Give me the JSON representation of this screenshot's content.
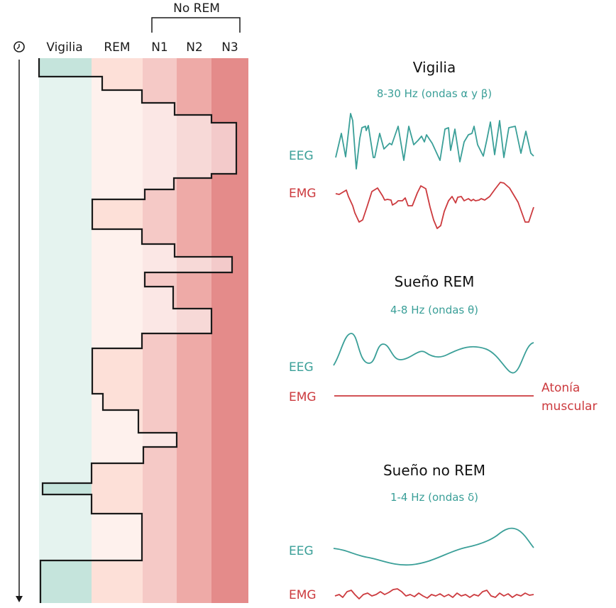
{
  "hypnogram": {
    "group_label": "No REM",
    "columns": [
      "Vigilia",
      "REM",
      "N1",
      "N2",
      "N3"
    ],
    "time_icon": "clock-icon",
    "stage_sequence": [
      "Vigilia",
      "REM",
      "N1",
      "N2",
      "N3",
      "N2",
      "N1",
      "REM",
      "N1",
      "N2",
      "N3",
      "N1",
      "N2",
      "N3",
      "N1",
      "REM",
      "REM",
      "N1",
      "N2",
      "N1",
      "REM",
      "Vigilia",
      "REM",
      "N1",
      "Vigilia"
    ],
    "colors": {
      "Vigilia": "#c5e4dc",
      "REM": "#fde0d8",
      "N1": "#f5c9c6",
      "N2": "#eeaaa7",
      "N3": "#e48b8a"
    }
  },
  "panels": [
    {
      "title": "Vigilia",
      "subtitle": "8-30 Hz (ondas α y β)",
      "eeg_label": "EEG",
      "emg_label": "EMG"
    },
    {
      "title": "Sueño REM",
      "subtitle": "4-8 Hz (ondas θ)",
      "eeg_label": "EEG",
      "emg_label": "EMG",
      "emg_note_line1": "Atonía",
      "emg_note_line2": "muscular"
    },
    {
      "title": "Sueño no REM",
      "subtitle": "1-4 Hz (ondas δ)",
      "eeg_label": "EEG",
      "emg_label": "EMG"
    }
  ],
  "colors": {
    "eeg": "#3a9f98",
    "emg": "#cc3a3e"
  }
}
